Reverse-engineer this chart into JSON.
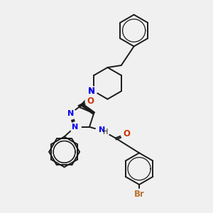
{
  "bg_color": "#f0f0f0",
  "bond_color": "#1a1a1a",
  "N_color": "#0000ee",
  "O_color": "#cc3300",
  "Br_color": "#b87333",
  "line_width": 1.4,
  "fig_width": 3.0,
  "fig_height": 3.0,
  "dpi": 100,
  "xlim": [
    0,
    10
  ],
  "ylim": [
    0,
    10
  ]
}
